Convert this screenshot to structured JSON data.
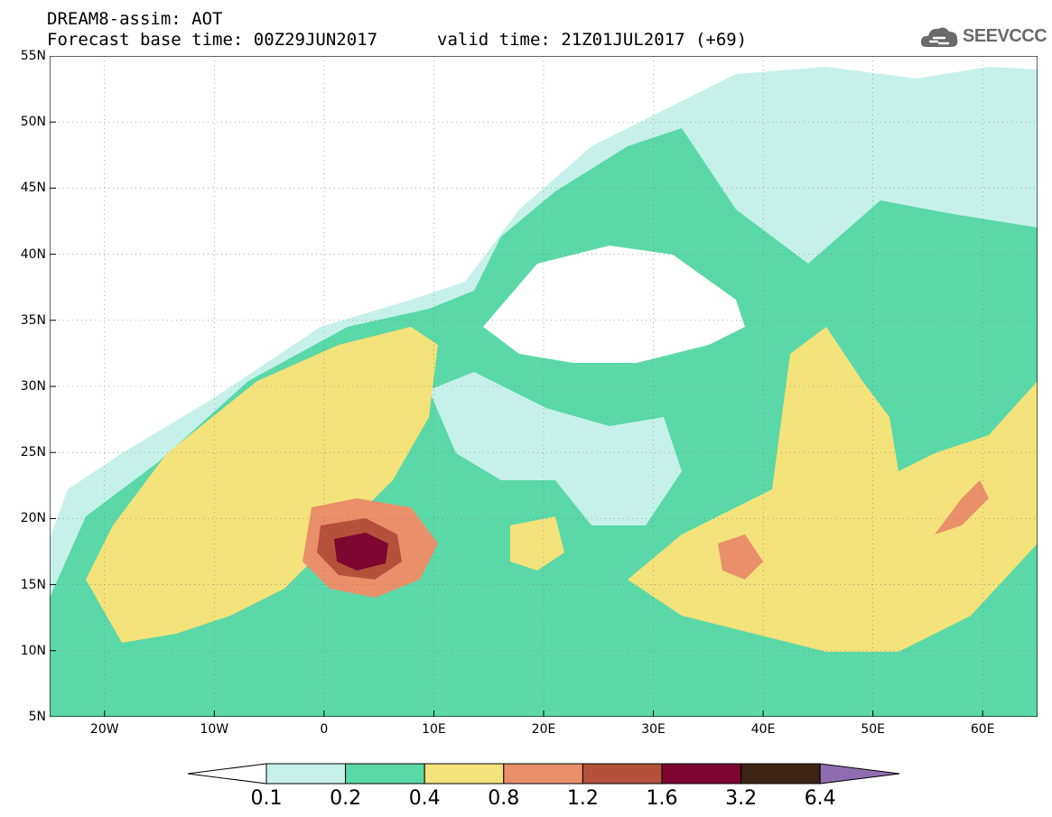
{
  "header": {
    "title": "DREAM8-assim: AOT",
    "base_time": "Forecast base time: 00Z29JUN2017",
    "valid_time": "valid time: 21Z01JUL2017 (+69)"
  },
  "logo": {
    "text": "SEEVCCC",
    "icon": "cloud-icon"
  },
  "map": {
    "variable": "AOT",
    "lon_range": [
      -25,
      65
    ],
    "lat_range": [
      5,
      55
    ],
    "lon_ticks": [
      "20W",
      "10W",
      "0",
      "10E",
      "20E",
      "30E",
      "40E",
      "50E",
      "60E"
    ],
    "lat_ticks": [
      "55N",
      "50N",
      "45N",
      "40N",
      "35N",
      "30N",
      "25N",
      "20N",
      "15N",
      "10N",
      "5N"
    ],
    "grid": "dotted"
  },
  "colorbar": {
    "labels": [
      "0.1",
      "0.2",
      "0.4",
      "0.8",
      "1.2",
      "1.6",
      "3.2",
      "6.4"
    ],
    "colors": [
      "#c6f1ea",
      "#5ad8a8",
      "#f4e27a",
      "#e98f6a",
      "#b5513b",
      "#7e0630",
      "#3b2414",
      "#8e6eb0"
    ],
    "below_color": "#ffffff"
  }
}
